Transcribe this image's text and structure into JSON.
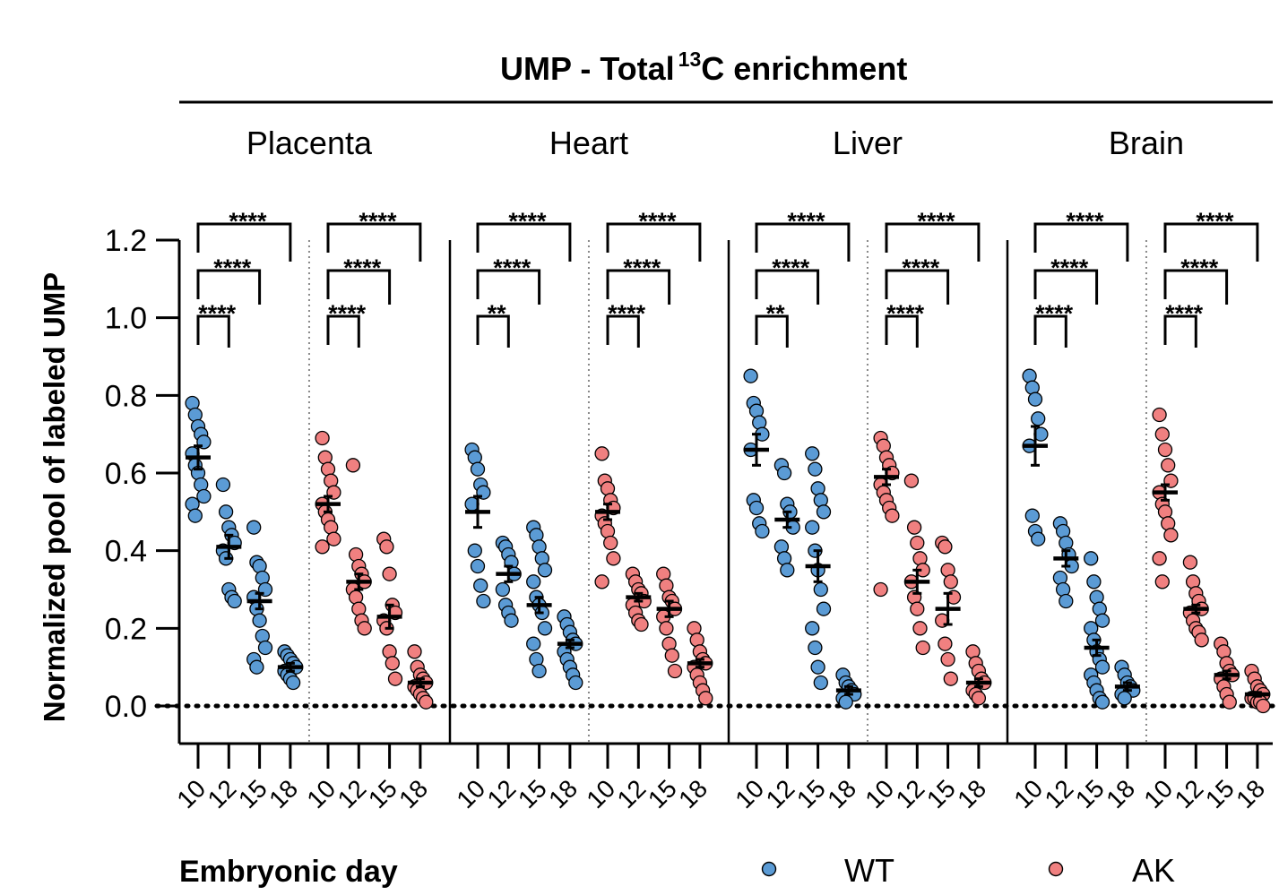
{
  "chart_data": {
    "type": "scatter",
    "title": "UMP - Total",
    "title_superscript": "13",
    "title_suffix": "C enrichment",
    "ylabel": "Normalized pool of labeled UMP",
    "xlabel": "Embryonic day",
    "ylim": [
      -0.1,
      1.2
    ],
    "yticks": [
      "0.0",
      "0.2",
      "0.4",
      "0.6",
      "0.8",
      "1.0",
      "1.2"
    ],
    "days": [
      "10",
      "12",
      "15",
      "18"
    ],
    "legend": [
      {
        "name": "WT",
        "color": "#5b9bd5"
      },
      {
        "name": "AK",
        "color": "#f08080"
      }
    ],
    "tissues": [
      {
        "name": "Placenta",
        "groups": [
          {
            "genotype": "WT",
            "means": [
              0.64,
              0.41,
              0.27,
              0.1
            ],
            "errors": [
              0.03,
              0.03,
              0.02,
              0.01
            ],
            "points": [
              [
                0.78,
                0.75,
                0.72,
                0.7,
                0.68,
                0.65,
                0.62,
                0.6,
                0.57,
                0.54,
                0.52,
                0.49
              ],
              [
                0.57,
                0.5,
                0.46,
                0.44,
                0.42,
                0.4,
                0.38,
                0.3,
                0.28,
                0.27
              ],
              [
                0.46,
                0.37,
                0.36,
                0.33,
                0.3,
                0.28,
                0.25,
                0.22,
                0.18,
                0.15,
                0.12,
                0.1
              ],
              [
                0.14,
                0.13,
                0.12,
                0.11,
                0.1,
                0.09,
                0.08,
                0.07,
                0.06
              ]
            ]
          },
          {
            "genotype": "AK",
            "means": [
              0.52,
              0.32,
              0.23,
              0.06
            ],
            "errors": [
              0.02,
              0.02,
              0.03,
              0.01
            ],
            "points": [
              [
                0.69,
                0.64,
                0.61,
                0.58,
                0.55,
                0.52,
                0.5,
                0.48,
                0.46,
                0.43,
                0.41
              ],
              [
                0.62,
                0.39,
                0.36,
                0.34,
                0.32,
                0.3,
                0.28,
                0.25,
                0.22,
                0.2
              ],
              [
                0.43,
                0.41,
                0.34,
                0.26,
                0.24,
                0.22,
                0.2,
                0.14,
                0.11,
                0.07
              ],
              [
                0.14,
                0.1,
                0.08,
                0.07,
                0.06,
                0.05,
                0.04,
                0.03,
                0.02,
                0.01
              ]
            ]
          }
        ]
      },
      {
        "name": "Heart",
        "groups": [
          {
            "genotype": "WT",
            "means": [
              0.5,
              0.34,
              0.26,
              0.16
            ],
            "errors": [
              0.04,
              0.02,
              0.02,
              0.01
            ],
            "points": [
              [
                0.66,
                0.64,
                0.61,
                0.57,
                0.55,
                0.52,
                0.4,
                0.36,
                0.31,
                0.27
              ],
              [
                0.42,
                0.41,
                0.39,
                0.37,
                0.34,
                0.3,
                0.26,
                0.24,
                0.22
              ],
              [
                0.46,
                0.44,
                0.41,
                0.38,
                0.35,
                0.32,
                0.28,
                0.26,
                0.24,
                0.2,
                0.16,
                0.12,
                0.09
              ],
              [
                0.23,
                0.21,
                0.19,
                0.17,
                0.16,
                0.14,
                0.12,
                0.1,
                0.08,
                0.06
              ]
            ]
          },
          {
            "genotype": "AK",
            "means": [
              0.5,
              0.28,
              0.25,
              0.11
            ],
            "errors": [
              0.02,
              0.01,
              0.02,
              0.01
            ],
            "points": [
              [
                0.65,
                0.58,
                0.56,
                0.53,
                0.51,
                0.49,
                0.47,
                0.45,
                0.42,
                0.38,
                0.32
              ],
              [
                0.34,
                0.32,
                0.3,
                0.29,
                0.27,
                0.26,
                0.24,
                0.22,
                0.21
              ],
              [
                0.34,
                0.31,
                0.28,
                0.27,
                0.25,
                0.23,
                0.2,
                0.16,
                0.13,
                0.09
              ],
              [
                0.2,
                0.17,
                0.14,
                0.12,
                0.11,
                0.1,
                0.08,
                0.06,
                0.04,
                0.02
              ]
            ]
          }
        ]
      },
      {
        "name": "Liver",
        "groups": [
          {
            "genotype": "WT",
            "means": [
              0.66,
              0.48,
              0.36,
              0.04
            ],
            "errors": [
              0.04,
              0.02,
              0.04,
              0.01
            ],
            "points": [
              [
                0.85,
                0.78,
                0.76,
                0.73,
                0.7,
                0.66,
                0.53,
                0.51,
                0.47,
                0.45
              ],
              [
                0.62,
                0.6,
                0.52,
                0.5,
                0.46,
                0.41,
                0.38,
                0.35
              ],
              [
                0.65,
                0.61,
                0.56,
                0.53,
                0.5,
                0.46,
                0.4,
                0.35,
                0.3,
                0.25,
                0.2,
                0.15,
                0.1,
                0.06
              ],
              [
                0.08,
                0.06,
                0.05,
                0.04,
                0.03,
                0.02,
                0.01
              ]
            ]
          },
          {
            "genotype": "AK",
            "means": [
              0.59,
              0.32,
              0.25,
              0.06
            ],
            "errors": [
              0.02,
              0.03,
              0.04,
              0.01
            ],
            "points": [
              [
                0.69,
                0.67,
                0.64,
                0.62,
                0.6,
                0.57,
                0.55,
                0.53,
                0.51,
                0.49,
                0.3
              ],
              [
                0.58,
                0.46,
                0.42,
                0.38,
                0.35,
                0.32,
                0.28,
                0.25,
                0.2,
                0.15
              ],
              [
                0.42,
                0.41,
                0.35,
                0.32,
                0.28,
                0.22,
                0.16,
                0.12,
                0.07
              ],
              [
                0.14,
                0.11,
                0.09,
                0.07,
                0.06,
                0.04,
                0.03,
                0.02
              ]
            ]
          }
        ]
      },
      {
        "name": "Brain",
        "groups": [
          {
            "genotype": "WT",
            "means": [
              0.67,
              0.38,
              0.15,
              0.05
            ],
            "errors": [
              0.05,
              0.02,
              0.02,
              0.01
            ],
            "points": [
              [
                0.85,
                0.82,
                0.79,
                0.74,
                0.7,
                0.67,
                0.49,
                0.45,
                0.43
              ],
              [
                0.47,
                0.45,
                0.42,
                0.39,
                0.36,
                0.33,
                0.3,
                0.27
              ],
              [
                0.38,
                0.32,
                0.28,
                0.25,
                0.22,
                0.2,
                0.17,
                0.14,
                0.12,
                0.1,
                0.08,
                0.06,
                0.04,
                0.02,
                0.01
              ],
              [
                0.1,
                0.08,
                0.06,
                0.05,
                0.04,
                0.03,
                0.02
              ]
            ]
          },
          {
            "genotype": "AK",
            "means": [
              0.55,
              0.25,
              0.08,
              0.03
            ],
            "errors": [
              0.02,
              0.01,
              0.01,
              0.005
            ],
            "points": [
              [
                0.75,
                0.7,
                0.66,
                0.62,
                0.58,
                0.55,
                0.52,
                0.5,
                0.47,
                0.44,
                0.38,
                0.32
              ],
              [
                0.37,
                0.32,
                0.29,
                0.27,
                0.25,
                0.24,
                0.22,
                0.2,
                0.19,
                0.17
              ],
              [
                0.16,
                0.14,
                0.11,
                0.09,
                0.08,
                0.07,
                0.05,
                0.03,
                0.01
              ],
              [
                0.09,
                0.07,
                0.05,
                0.04,
                0.03,
                0.02,
                0.02,
                0.01,
                0.01,
                0.0
              ]
            ]
          }
        ]
      }
    ],
    "significance": [
      {
        "tissue": "Placenta",
        "genotype": "WT",
        "labels": [
          "****",
          "****",
          "****"
        ]
      },
      {
        "tissue": "Placenta",
        "genotype": "AK",
        "labels": [
          "****",
          "****",
          "****"
        ]
      },
      {
        "tissue": "Heart",
        "genotype": "WT",
        "labels": [
          "**",
          "****",
          "****"
        ]
      },
      {
        "tissue": "Heart",
        "genotype": "AK",
        "labels": [
          "****",
          "****",
          "****"
        ]
      },
      {
        "tissue": "Liver",
        "genotype": "WT",
        "labels": [
          "**",
          "****",
          "****"
        ]
      },
      {
        "tissue": "Liver",
        "genotype": "AK",
        "labels": [
          "****",
          "****",
          "****"
        ]
      },
      {
        "tissue": "Brain",
        "genotype": "WT",
        "labels": [
          "****",
          "****",
          "****"
        ]
      },
      {
        "tissue": "Brain",
        "genotype": "AK",
        "labels": [
          "****",
          "****",
          "****"
        ]
      }
    ]
  }
}
